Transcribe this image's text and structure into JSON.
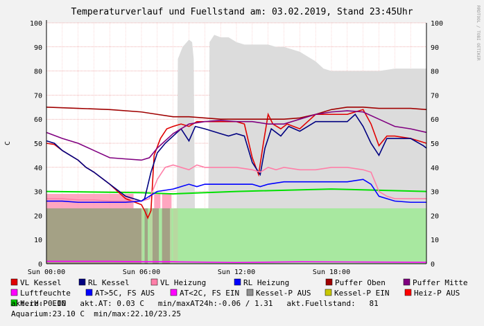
{
  "chart_data": {
    "type": "line",
    "title": "Temperaturverlauf und Fuellstand am: 03.02.2019, Stand 23:45Uhr",
    "ylabel": "C",
    "watermark": "RRDTOOL / TOBI OETIKER",
    "ylim": [
      0,
      100
    ],
    "yticks": [
      "0",
      "10",
      "20",
      "30",
      "40",
      "50",
      "60",
      "70",
      "80",
      "90",
      "100"
    ],
    "xlim_hours": [
      0,
      24
    ],
    "xticks": [
      {
        "label": "Sun 00:00",
        "hour": 0
      },
      {
        "label": "Sun 06:00",
        "hour": 6
      },
      {
        "label": "Sun 12:00",
        "hour": 12
      },
      {
        "label": "Sun 18:00",
        "hour": 18
      }
    ],
    "grid": true,
    "legend_placement": "bottom",
    "series": [
      {
        "name": "VL Kessel",
        "color": "#e00000",
        "kind": "line",
        "points": [
          [
            0,
            50
          ],
          [
            0.5,
            49.5
          ],
          [
            1,
            47
          ],
          [
            2,
            43
          ],
          [
            2.5,
            40
          ],
          [
            3,
            38
          ],
          [
            4,
            33
          ],
          [
            5,
            27
          ],
          [
            6,
            24.5
          ],
          [
            6.2,
            22
          ],
          [
            6.4,
            19
          ],
          [
            6.6,
            22
          ],
          [
            6.8,
            45
          ],
          [
            7.2,
            52
          ],
          [
            7.6,
            56
          ],
          [
            8,
            57
          ],
          [
            8.5,
            58
          ],
          [
            9,
            57
          ],
          [
            9.5,
            59
          ],
          [
            10,
            59
          ],
          [
            11,
            59
          ],
          [
            12,
            59
          ],
          [
            12.5,
            58
          ],
          [
            13,
            44
          ],
          [
            13.4,
            37
          ],
          [
            13.7,
            50
          ],
          [
            14,
            62
          ],
          [
            14.3,
            58
          ],
          [
            14.8,
            56
          ],
          [
            15.2,
            58
          ],
          [
            15.6,
            57
          ],
          [
            16,
            56
          ],
          [
            16.5,
            59
          ],
          [
            17,
            62
          ],
          [
            18,
            62
          ],
          [
            19,
            62
          ],
          [
            20,
            64
          ],
          [
            20.5,
            58
          ],
          [
            21,
            49
          ],
          [
            21.5,
            53
          ],
          [
            22,
            53
          ],
          [
            23,
            52
          ],
          [
            24,
            50
          ]
        ]
      },
      {
        "name": "RL Kessel",
        "color": "#000080",
        "kind": "line",
        "points": [
          [
            0,
            51
          ],
          [
            0.5,
            50
          ],
          [
            1,
            47
          ],
          [
            2,
            43
          ],
          [
            2.5,
            40
          ],
          [
            3,
            38
          ],
          [
            4,
            33
          ],
          [
            5,
            28
          ],
          [
            6,
            26
          ],
          [
            6.2,
            27
          ],
          [
            6.6,
            38
          ],
          [
            7,
            46
          ],
          [
            7.5,
            50
          ],
          [
            8,
            53
          ],
          [
            8.5,
            56
          ],
          [
            9,
            51
          ],
          [
            9.4,
            57
          ],
          [
            10,
            56
          ],
          [
            11,
            54
          ],
          [
            11.5,
            53
          ],
          [
            12,
            54
          ],
          [
            12.5,
            53
          ],
          [
            13,
            42
          ],
          [
            13.5,
            37
          ],
          [
            13.8,
            48
          ],
          [
            14.2,
            56
          ],
          [
            14.8,
            53
          ],
          [
            15.3,
            57
          ],
          [
            16,
            55
          ],
          [
            16.5,
            57
          ],
          [
            17,
            59
          ],
          [
            18,
            59
          ],
          [
            19,
            59
          ],
          [
            19.5,
            62
          ],
          [
            20,
            57
          ],
          [
            20.5,
            50
          ],
          [
            21,
            45
          ],
          [
            21.5,
            52
          ],
          [
            22,
            52
          ],
          [
            23,
            52
          ],
          [
            23.8,
            49
          ],
          [
            24,
            48
          ]
        ]
      },
      {
        "name": "VL Heizung",
        "color": "#ff7fa8",
        "kind": "line",
        "points": [
          [
            0,
            27
          ],
          [
            1,
            27
          ],
          [
            2,
            26.5
          ],
          [
            3,
            26.5
          ],
          [
            4,
            26
          ],
          [
            5,
            26
          ],
          [
            6,
            26
          ],
          [
            6.5,
            27
          ],
          [
            7,
            35
          ],
          [
            7.5,
            40
          ],
          [
            8,
            41
          ],
          [
            8.5,
            40
          ],
          [
            9,
            39
          ],
          [
            9.5,
            41
          ],
          [
            10,
            40
          ],
          [
            11,
            40
          ],
          [
            12,
            40
          ],
          [
            13,
            39
          ],
          [
            13.5,
            38
          ],
          [
            14,
            40
          ],
          [
            14.5,
            39
          ],
          [
            15,
            40
          ],
          [
            16,
            39
          ],
          [
            17,
            39
          ],
          [
            18,
            40
          ],
          [
            19,
            40
          ],
          [
            20,
            39
          ],
          [
            20.5,
            38
          ],
          [
            21,
            30
          ],
          [
            21.5,
            28
          ],
          [
            22,
            27
          ],
          [
            23,
            27
          ],
          [
            24,
            27
          ]
        ]
      },
      {
        "name": "RL Heizung",
        "color": "#0000ff",
        "kind": "line",
        "points": [
          [
            0,
            26
          ],
          [
            1,
            26
          ],
          [
            2,
            25.5
          ],
          [
            3,
            25.5
          ],
          [
            4,
            25.5
          ],
          [
            5,
            25.5
          ],
          [
            6,
            26
          ],
          [
            6.5,
            28
          ],
          [
            7,
            30
          ],
          [
            7.5,
            30.5
          ],
          [
            8,
            31
          ],
          [
            8.5,
            32
          ],
          [
            9,
            33
          ],
          [
            9.5,
            32
          ],
          [
            10,
            33
          ],
          [
            11,
            33
          ],
          [
            12,
            33
          ],
          [
            13,
            33
          ],
          [
            13.5,
            32
          ],
          [
            14,
            33
          ],
          [
            15,
            34
          ],
          [
            16,
            34
          ],
          [
            17,
            34
          ],
          [
            18,
            34
          ],
          [
            19,
            34
          ],
          [
            20,
            35
          ],
          [
            20.5,
            33
          ],
          [
            21,
            28
          ],
          [
            21.5,
            27
          ],
          [
            22,
            26
          ],
          [
            23,
            25.5
          ],
          [
            24,
            25.5
          ]
        ]
      },
      {
        "name": "Puffer Oben",
        "color": "#a00000",
        "kind": "line",
        "points": [
          [
            0,
            65
          ],
          [
            2,
            64.5
          ],
          [
            4,
            64
          ],
          [
            6,
            63
          ],
          [
            7,
            62
          ],
          [
            8,
            61
          ],
          [
            9,
            61
          ],
          [
            10,
            60.5
          ],
          [
            11,
            60
          ],
          [
            12,
            60
          ],
          [
            13,
            60
          ],
          [
            14,
            60
          ],
          [
            15,
            60
          ],
          [
            16,
            60.5
          ],
          [
            17,
            62
          ],
          [
            18,
            64
          ],
          [
            19,
            65
          ],
          [
            20,
            65
          ],
          [
            21,
            64.5
          ],
          [
            22,
            64.5
          ],
          [
            23,
            64.5
          ],
          [
            24,
            64
          ]
        ]
      },
      {
        "name": "Puffer Mitte",
        "color": "#800080",
        "kind": "line",
        "points": [
          [
            0,
            54.5
          ],
          [
            1,
            52
          ],
          [
            2,
            50
          ],
          [
            3,
            47
          ],
          [
            4,
            44
          ],
          [
            5,
            43.5
          ],
          [
            6,
            43
          ],
          [
            6.5,
            44
          ],
          [
            7,
            48
          ],
          [
            8,
            54
          ],
          [
            9,
            58
          ],
          [
            10,
            59
          ],
          [
            11,
            59.5
          ],
          [
            12,
            59
          ],
          [
            13,
            59
          ],
          [
            14,
            58
          ],
          [
            15,
            58
          ],
          [
            16,
            60
          ],
          [
            17,
            62
          ],
          [
            18,
            63
          ],
          [
            19,
            63.5
          ],
          [
            20,
            63
          ],
          [
            21,
            60
          ],
          [
            22,
            57
          ],
          [
            23,
            56
          ],
          [
            24,
            54.5
          ]
        ]
      },
      {
        "name": "Luftfeuchte",
        "color": "#ff00ff",
        "kind": "line",
        "points": [
          [
            0,
            1
          ],
          [
            4,
            1
          ],
          [
            6,
            0.8
          ],
          [
            8,
            0.8
          ],
          [
            12,
            0.5
          ],
          [
            16,
            0.8
          ],
          [
            20,
            0.7
          ],
          [
            24,
            0.6
          ]
        ]
      },
      {
        "name": "AT>5C, FS AUS",
        "color": "#0000ff",
        "kind": "area",
        "points": []
      },
      {
        "name": "AT<2C, FS EIN",
        "color": "#ff00ff",
        "kind": "area",
        "points": []
      },
      {
        "name": "Kessel-P AUS",
        "color": "#909090",
        "kind": "area",
        "points": [
          [
            0,
            0
          ],
          [
            24,
            0
          ]
        ]
      },
      {
        "name": "Kessel-P EIN",
        "color": "#c8c800",
        "kind": "area",
        "points": []
      },
      {
        "name": "Heiz-P AUS",
        "color": "#ff0000",
        "kind": "area",
        "points": []
      },
      {
        "name": "Heiz-P EIN",
        "color": "#00d000",
        "kind": "area",
        "points": [
          [
            0,
            23
          ],
          [
            24,
            23
          ]
        ]
      }
    ],
    "fill_level": {
      "color": "#dcdcdc",
      "points": [
        [
          8.2,
          0
        ],
        [
          8.3,
          85
        ],
        [
          8.6,
          90
        ],
        [
          9,
          93
        ],
        [
          9.2,
          92
        ],
        [
          9.3,
          85
        ],
        [
          9.4,
          0
        ],
        [
          10.2,
          0
        ],
        [
          10.3,
          92
        ],
        [
          10.6,
          95
        ],
        [
          11,
          94
        ],
        [
          11.5,
          94
        ],
        [
          12,
          92
        ],
        [
          12.5,
          91
        ],
        [
          13,
          91
        ],
        [
          13.5,
          91
        ],
        [
          14,
          91
        ],
        [
          14.5,
          90
        ],
        [
          15,
          90
        ],
        [
          15.5,
          89
        ],
        [
          16,
          88
        ],
        [
          16.5,
          86
        ],
        [
          17,
          84
        ],
        [
          17.5,
          81
        ],
        [
          18,
          80
        ],
        [
          19,
          80
        ],
        [
          20,
          80
        ],
        [
          21,
          80
        ],
        [
          22,
          81
        ],
        [
          23,
          81
        ],
        [
          24,
          81
        ]
      ]
    },
    "heizp_bars": [
      [
        0,
        6.1
      ],
      [
        6.5,
        6.9
      ],
      [
        7.3,
        7.9
      ],
      [
        8.0,
        8.3
      ]
    ],
    "kesselp_bars": [
      [
        0,
        6.0
      ],
      [
        6.2,
        6.4
      ],
      [
        6.7,
        7.1
      ],
      [
        7.3,
        7.8
      ]
    ],
    "pink_bars": [
      [
        0,
        5.5
      ],
      [
        6.8,
        7.2
      ],
      [
        7.3,
        7.9
      ]
    ]
  },
  "legend": [
    {
      "label": "VL Kessel",
      "color": "#e00000"
    },
    {
      "label": "RL Kessel",
      "color": "#000080"
    },
    {
      "label": "VL Heizung",
      "color": "#ff7fa8"
    },
    {
      "label": "RL Heizung",
      "color": "#0000ff"
    },
    {
      "label": "Puffer Oben",
      "color": "#a00000"
    },
    {
      "label": "Puffer Mitte",
      "color": "#800080"
    },
    {
      "label": "Luftfeuchte",
      "color": "#ff00ff"
    },
    {
      "label": "AT>5C, FS AUS",
      "color": "#0000ff"
    },
    {
      "label": "AT<2C, FS EIN",
      "color": "#ff00ff"
    },
    {
      "label": "Kessel-P AUS",
      "color": "#909090"
    },
    {
      "label": "Kessel-P EIN",
      "color": "#c8c800"
    },
    {
      "label": "Heiz-P AUS",
      "color": "#ff0000"
    },
    {
      "label": "Heiz-P EIN",
      "color": "#00d000"
    }
  ],
  "status": {
    "line1": "akt.rH: 0.00   akt.AT: 0.03 C   min/maxAT24h:-0.06 / 1.31   akt.Fuellstand:   81",
    "line2": "Aquarium:23.10 C  min/max:22.10/23.25"
  }
}
